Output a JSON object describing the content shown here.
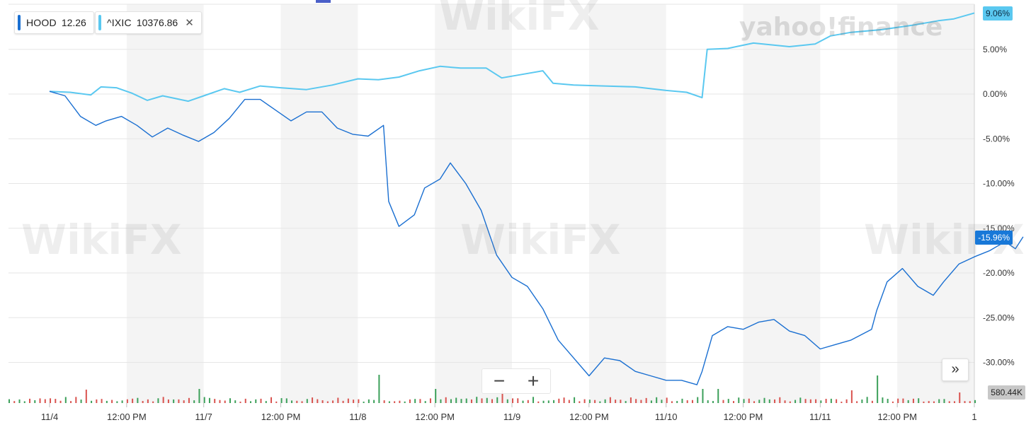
{
  "legend": {
    "items": [
      {
        "symbol": "HOOD",
        "value": "12.26",
        "color": "#1a6fd1"
      },
      {
        "symbol": "^IXIC",
        "value": "10376.86",
        "color": "#5ac8f0"
      }
    ],
    "close_icon": "close-icon"
  },
  "badges": {
    "ixic": "9.06%",
    "hood": "-15.96%",
    "volume": "580.44K"
  },
  "controls": {
    "zoom_out": "−",
    "zoom_in": "+",
    "expand": "»"
  },
  "watermarks": {
    "yahoo": "yahoo!finance",
    "wikifx": "WikiFX"
  },
  "colors": {
    "hood_line": "#1a6fd1",
    "ixic_line": "#5ac8f0",
    "volume_up": "#3ca05a",
    "volume_down": "#d9534f",
    "band": "#f4f4f4"
  },
  "chart_data": {
    "type": "line",
    "title": "",
    "xlabel": "",
    "ylabel": "",
    "ylim": [
      -34,
      10.5
    ],
    "y_ticks": [
      "5.00%",
      "0.00%",
      "-5.00%",
      "-10.00%",
      "-15.00%",
      "-20.00%",
      "-25.00%",
      "-30.00%"
    ],
    "y_tick_values": [
      5,
      0,
      -5,
      -10,
      -15,
      -20,
      -25,
      -30
    ],
    "x_tick_labels": [
      "11/4",
      "12:00 PM",
      "11/7",
      "12:00 PM",
      "11/8",
      "12:00 PM",
      "11/9",
      "12:00 PM",
      "11/10",
      "12:00 PM",
      "11/11",
      "12:00 PM",
      "1"
    ],
    "x_tick_times": [
      0,
      1.5,
      3,
      4.5,
      6,
      7.5,
      9,
      10.5,
      12,
      13.5,
      15,
      16.5,
      18
    ],
    "shaded_bands": [
      [
        1.5,
        3
      ],
      [
        4.5,
        6
      ],
      [
        7.5,
        9
      ],
      [
        10.5,
        12
      ],
      [
        13.5,
        15
      ],
      [
        16.5,
        18
      ]
    ],
    "legend_placement": "top-left",
    "series": [
      {
        "name": "^IXIC",
        "color": "#5ac8f0",
        "points": [
          [
            0,
            0.3
          ],
          [
            0.4,
            0.2
          ],
          [
            0.8,
            -0.1
          ],
          [
            1.0,
            0.8
          ],
          [
            1.3,
            0.7
          ],
          [
            1.6,
            0.1
          ],
          [
            1.9,
            -0.7
          ],
          [
            2.2,
            -0.2
          ],
          [
            2.7,
            -0.8
          ],
          [
            3.0,
            -0.2
          ],
          [
            3.4,
            0.6
          ],
          [
            3.7,
            0.2
          ],
          [
            4.1,
            0.9
          ],
          [
            4.5,
            0.7
          ],
          [
            5.0,
            0.5
          ],
          [
            5.5,
            1.0
          ],
          [
            6.0,
            1.7
          ],
          [
            6.4,
            1.6
          ],
          [
            6.8,
            1.9
          ],
          [
            7.2,
            2.6
          ],
          [
            7.6,
            3.1
          ],
          [
            8.0,
            2.9
          ],
          [
            8.5,
            2.9
          ],
          [
            8.8,
            1.8
          ],
          [
            9.2,
            2.2
          ],
          [
            9.6,
            2.6
          ],
          [
            9.8,
            1.2
          ],
          [
            10.2,
            1.0
          ],
          [
            10.8,
            0.9
          ],
          [
            11.4,
            0.8
          ],
          [
            12.0,
            0.4
          ],
          [
            12.4,
            0.2
          ],
          [
            12.7,
            -0.4
          ],
          [
            12.8,
            5.0
          ],
          [
            13.2,
            5.1
          ],
          [
            13.7,
            5.7
          ],
          [
            14.4,
            5.3
          ],
          [
            14.9,
            5.6
          ],
          [
            15.2,
            6.5
          ],
          [
            15.6,
            6.9
          ],
          [
            16.2,
            7.2
          ],
          [
            16.8,
            7.7
          ],
          [
            17.3,
            8.2
          ],
          [
            17.6,
            8.4
          ],
          [
            18.0,
            9.06
          ]
        ]
      },
      {
        "name": "HOOD",
        "color": "#1a6fd1",
        "points": [
          [
            0,
            0.3
          ],
          [
            0.3,
            -0.2
          ],
          [
            0.6,
            -2.5
          ],
          [
            0.9,
            -3.5
          ],
          [
            1.1,
            -3.0
          ],
          [
            1.4,
            -2.5
          ],
          [
            1.7,
            -3.5
          ],
          [
            2.0,
            -4.8
          ],
          [
            2.3,
            -3.8
          ],
          [
            2.6,
            -4.6
          ],
          [
            2.9,
            -5.3
          ],
          [
            3.2,
            -4.3
          ],
          [
            3.5,
            -2.7
          ],
          [
            3.8,
            -0.6
          ],
          [
            4.1,
            -0.6
          ],
          [
            4.4,
            -1.8
          ],
          [
            4.7,
            -3.0
          ],
          [
            5.0,
            -2.0
          ],
          [
            5.3,
            -2.0
          ],
          [
            5.6,
            -3.8
          ],
          [
            5.9,
            -4.5
          ],
          [
            6.2,
            -4.7
          ],
          [
            6.5,
            -3.5
          ],
          [
            6.6,
            -12.0
          ],
          [
            6.8,
            -14.8
          ],
          [
            7.1,
            -13.5
          ],
          [
            7.3,
            -10.5
          ],
          [
            7.6,
            -9.5
          ],
          [
            7.8,
            -7.7
          ],
          [
            8.1,
            -10.0
          ],
          [
            8.4,
            -13.0
          ],
          [
            8.7,
            -18.0
          ],
          [
            9.0,
            -20.5
          ],
          [
            9.3,
            -21.5
          ],
          [
            9.6,
            -24.0
          ],
          [
            9.9,
            -27.5
          ],
          [
            10.2,
            -29.5
          ],
          [
            10.5,
            -31.5
          ],
          [
            10.8,
            -29.5
          ],
          [
            11.1,
            -29.8
          ],
          [
            11.4,
            -31.0
          ],
          [
            11.7,
            -31.5
          ],
          [
            12.0,
            -32.0
          ],
          [
            12.3,
            -32.0
          ],
          [
            12.6,
            -32.5
          ],
          [
            12.7,
            -31.0
          ],
          [
            12.9,
            -27.0
          ],
          [
            13.2,
            -26.0
          ],
          [
            13.5,
            -26.3
          ],
          [
            13.8,
            -25.5
          ],
          [
            14.1,
            -25.2
          ],
          [
            14.4,
            -26.5
          ],
          [
            14.7,
            -27.0
          ],
          [
            15.0,
            -28.5
          ],
          [
            15.3,
            -28.0
          ],
          [
            15.6,
            -27.5
          ],
          [
            16.0,
            -26.3
          ],
          [
            16.1,
            -24.2
          ],
          [
            16.3,
            -21.0
          ],
          [
            16.6,
            -19.5
          ],
          [
            16.9,
            -21.5
          ],
          [
            17.2,
            -22.5
          ],
          [
            17.4,
            -21.0
          ],
          [
            17.7,
            -19.0
          ],
          [
            18.0,
            -18.2
          ],
          [
            18.3,
            -17.5
          ],
          [
            18.6,
            -16.5
          ],
          [
            18.8,
            -17.3
          ],
          [
            18.95,
            -15.96
          ]
        ]
      }
    ],
    "volume": {
      "label": "580.44K",
      "spikes": [
        [
          6.4,
          40
        ],
        [
          12.7,
          20
        ],
        [
          16.1,
          39
        ],
        [
          7.5,
          20
        ],
        [
          8.8,
          18
        ],
        [
          2.9,
          20
        ],
        [
          0.7,
          19
        ],
        [
          13.0,
          20
        ],
        [
          15.6,
          18
        ],
        [
          17.7,
          15
        ]
      ]
    }
  }
}
